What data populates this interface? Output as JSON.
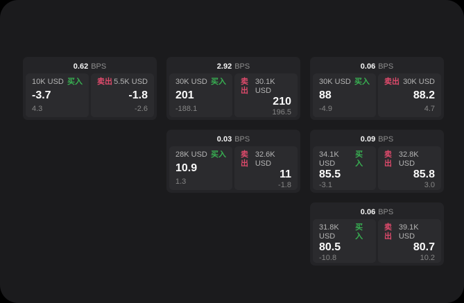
{
  "labels": {
    "bps": "BPS",
    "buy": "买入",
    "sell": "卖出"
  },
  "colors": {
    "background": "#000000",
    "panel_bg": "#1b1b1d",
    "card_bg": "#242427",
    "tile_bg": "#2b2b2e",
    "buy_green": "#38b052",
    "sell_red": "#dd4a6b"
  },
  "cards": [
    {
      "bps": "0.62",
      "grid": {
        "row": 1,
        "col": 1
      },
      "buy": {
        "notional": "10K USD",
        "price": "-3.7",
        "delta": "4.3"
      },
      "sell": {
        "notional": "5.5K USD",
        "price": "-1.8",
        "delta": "-2.6"
      }
    },
    {
      "bps": "2.92",
      "grid": {
        "row": 1,
        "col": 2
      },
      "buy": {
        "notional": "30K USD",
        "price": "201",
        "delta": "-188.1"
      },
      "sell": {
        "notional": "30.1K USD",
        "price": "210",
        "delta": "196.5"
      }
    },
    {
      "bps": "0.06",
      "grid": {
        "row": 1,
        "col": 3
      },
      "buy": {
        "notional": "30K USD",
        "price": "88",
        "delta": "-4.9"
      },
      "sell": {
        "notional": "30K USD",
        "price": "88.2",
        "delta": "4.7"
      }
    },
    {
      "bps": "0.03",
      "grid": {
        "row": 2,
        "col": 2
      },
      "buy": {
        "notional": "28K USD",
        "price": "10.9",
        "delta": "1.3"
      },
      "sell": {
        "notional": "32.6K USD",
        "price": "11",
        "delta": "-1.8"
      }
    },
    {
      "bps": "0.09",
      "grid": {
        "row": 2,
        "col": 3
      },
      "buy": {
        "notional": "34.1K USD",
        "price": "85.5",
        "delta": "-3.1"
      },
      "sell": {
        "notional": "32.8K USD",
        "price": "85.8",
        "delta": "3.0"
      }
    },
    {
      "bps": "0.06",
      "grid": {
        "row": 3,
        "col": 3
      },
      "buy": {
        "notional": "31.8K USD",
        "price": "80.5",
        "delta": "-10.8"
      },
      "sell": {
        "notional": "39.1K USD",
        "price": "80.7",
        "delta": "10.2"
      }
    }
  ]
}
